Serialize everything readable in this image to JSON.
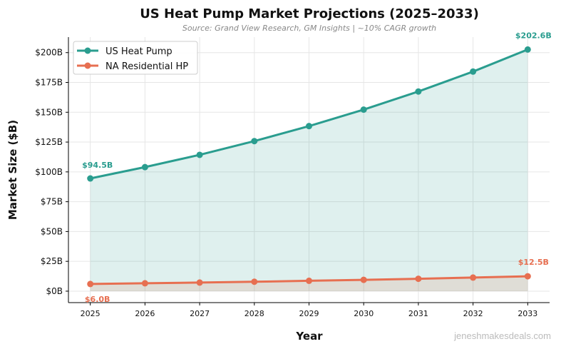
{
  "chart_data": {
    "type": "line",
    "title": "US Heat Pump Market Projections (2025–2033)",
    "subtitle": "Source: Grand View Research, GM Insights | ~10% CAGR growth",
    "xlabel": "Year",
    "ylabel": "Market Size ($B)",
    "x": [
      2025,
      2026,
      2027,
      2028,
      2029,
      2030,
      2031,
      2032,
      2033
    ],
    "x_tick_labels": [
      "2025",
      "2026",
      "2027",
      "2028",
      "2029",
      "2030",
      "2031",
      "2032",
      "2033"
    ],
    "y_ticks": [
      0,
      25,
      50,
      75,
      100,
      125,
      150,
      175,
      200
    ],
    "y_tick_labels": [
      "$0B",
      "$25B",
      "$50B",
      "$75B",
      "$100B",
      "$125B",
      "$150B",
      "$175B",
      "$200B"
    ],
    "xlim": [
      2024.6,
      2033.4
    ],
    "ylim": [
      -9.6,
      213
    ],
    "grid": true,
    "legend_position": "top-left",
    "area_fill": true,
    "series": [
      {
        "name": "US Heat Pump",
        "color": "#2a9d8f",
        "values": [
          94.5,
          104.0,
          114.3,
          125.8,
          138.4,
          152.2,
          167.4,
          184.1,
          202.6
        ],
        "start_label": "$94.5B",
        "end_label": "$202.6B"
      },
      {
        "name": "NA Residential HP",
        "color": "#e76f51",
        "values": [
          6.0,
          6.6,
          7.2,
          7.9,
          8.7,
          9.5,
          10.4,
          11.4,
          12.5
        ],
        "start_label": "$6.0B",
        "end_label": "$12.5B"
      }
    ]
  },
  "watermark": "jeneshmakesdeals.com"
}
